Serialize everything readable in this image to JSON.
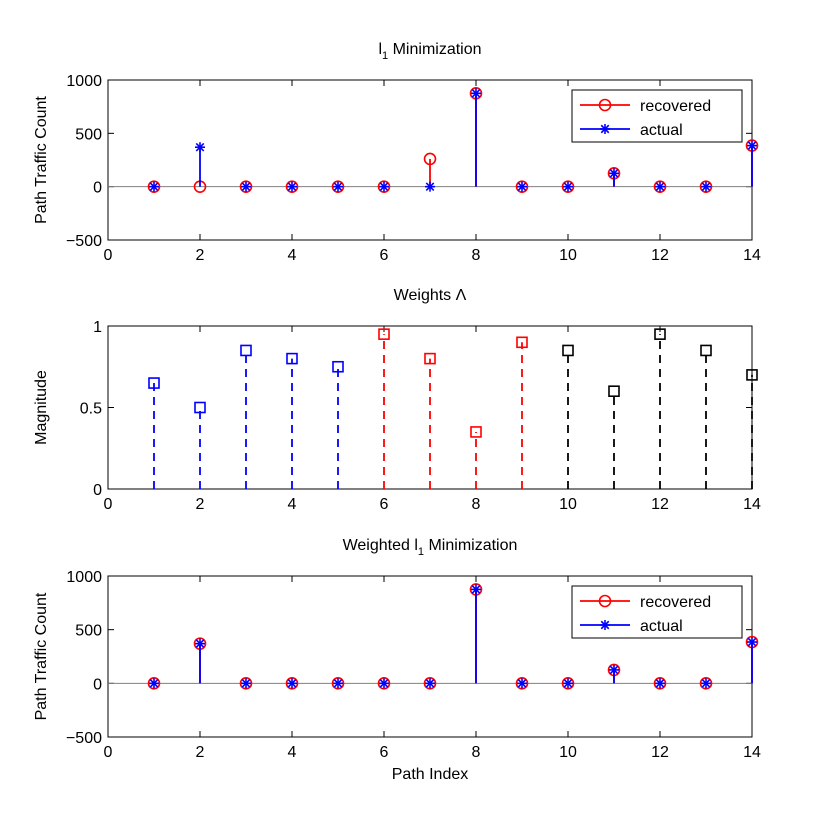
{
  "chart_data": [
    {
      "type": "stem",
      "title": "l",
      "title_sub": "1",
      "title_rest": " Minimization",
      "xlabel": "",
      "ylabel": "Path Traffic Count",
      "xlim": [
        0,
        14
      ],
      "ylim": [
        -500,
        1000
      ],
      "xticks": [
        0,
        2,
        4,
        6,
        8,
        10,
        12,
        14
      ],
      "yticks": [
        -500,
        0,
        500,
        1000
      ],
      "ytick_labels": [
        "−500",
        "0",
        "500",
        "1000"
      ],
      "grid": false,
      "legend_position": "top-right",
      "x": [
        1,
        2,
        3,
        4,
        5,
        6,
        7,
        8,
        9,
        10,
        11,
        12,
        13,
        14
      ],
      "series": [
        {
          "name": "recovered",
          "color": "#ff0000",
          "marker": "circle",
          "values": [
            0,
            0,
            0,
            0,
            0,
            0,
            260,
            875,
            0,
            0,
            125,
            0,
            0,
            385
          ]
        },
        {
          "name": "actual",
          "color": "#0000ff",
          "marker": "asterisk",
          "values": [
            0,
            370,
            0,
            0,
            0,
            0,
            0,
            875,
            0,
            0,
            125,
            0,
            0,
            385
          ]
        }
      ]
    },
    {
      "type": "stem",
      "title": "Weights Λ",
      "xlabel": "",
      "ylabel": "Magnitude",
      "xlim": [
        0,
        14
      ],
      "ylim": [
        0,
        1
      ],
      "xticks": [
        0,
        2,
        4,
        6,
        8,
        10,
        12,
        14
      ],
      "yticks": [
        0,
        0.5,
        1
      ],
      "ytick_labels": [
        "0",
        "0.5",
        "1"
      ],
      "grid": false,
      "x": [
        1,
        2,
        3,
        4,
        5,
        6,
        7,
        8,
        9,
        10,
        11,
        12,
        13,
        14
      ],
      "values": [
        0.65,
        0.5,
        0.85,
        0.8,
        0.75,
        0.95,
        0.8,
        0.35,
        0.9,
        0.85,
        0.6,
        0.95,
        0.85,
        0.7
      ],
      "colors": [
        "#0000ff",
        "#0000ff",
        "#0000ff",
        "#0000ff",
        "#0000ff",
        "#ff0000",
        "#ff0000",
        "#ff0000",
        "#ff0000",
        "#000000",
        "#000000",
        "#000000",
        "#000000",
        "#000000"
      ]
    },
    {
      "type": "stem",
      "title": "Weighted l",
      "title_sub": "1",
      "title_rest": " Minimization",
      "xlabel": "Path Index",
      "ylabel": "Path Traffic Count",
      "xlim": [
        0,
        14
      ],
      "ylim": [
        -500,
        1000
      ],
      "xticks": [
        0,
        2,
        4,
        6,
        8,
        10,
        12,
        14
      ],
      "yticks": [
        -500,
        0,
        500,
        1000
      ],
      "ytick_labels": [
        "−500",
        "0",
        "500",
        "1000"
      ],
      "grid": false,
      "legend_position": "top-right",
      "x": [
        1,
        2,
        3,
        4,
        5,
        6,
        7,
        8,
        9,
        10,
        11,
        12,
        13,
        14
      ],
      "series": [
        {
          "name": "recovered",
          "color": "#ff0000",
          "marker": "circle",
          "values": [
            0,
            370,
            0,
            0,
            0,
            0,
            0,
            875,
            0,
            0,
            125,
            0,
            0,
            385
          ]
        },
        {
          "name": "actual",
          "color": "#0000ff",
          "marker": "asterisk",
          "values": [
            0,
            370,
            0,
            0,
            0,
            0,
            0,
            875,
            0,
            0,
            125,
            0,
            0,
            385
          ]
        }
      ]
    }
  ]
}
